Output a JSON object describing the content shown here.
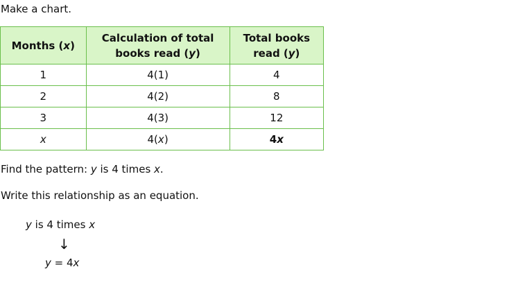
{
  "intro": "Make a chart.",
  "table": {
    "headers": {
      "col1_text": "Months (",
      "col1_var": "x",
      "col1_close": ")",
      "col2_line1": "Calculation of total",
      "col2_line2_text": "books read (",
      "col2_line2_var": "y",
      "col2_line2_close": ")",
      "col3_line1": "Total books",
      "col3_line2_text": "read (",
      "col3_line2_var": "y",
      "col3_line2_close": ")"
    },
    "rows": [
      {
        "months": "1",
        "calc": "4(1)",
        "total": "4"
      },
      {
        "months": "2",
        "calc": "4(2)",
        "total": "8"
      },
      {
        "months": "3",
        "calc": "4(3)",
        "total": "12"
      }
    ],
    "last_row": {
      "months_var": "x",
      "calc_prefix": "4(",
      "calc_var": "x",
      "calc_suffix": ")",
      "total_num": "4",
      "total_var": "x"
    }
  },
  "pattern": {
    "prefix": "Find the pattern: ",
    "var_y": "y",
    "middle": " is 4 times ",
    "var_x": "x",
    "suffix": "."
  },
  "write_text": "Write this relationship as an equation.",
  "equation_words": {
    "var_y": "y",
    "middle": " is 4 times ",
    "var_x": "x"
  },
  "arrow": "↓",
  "equation": {
    "var_y": "y",
    "middle": " = 4",
    "var_x": "x"
  }
}
